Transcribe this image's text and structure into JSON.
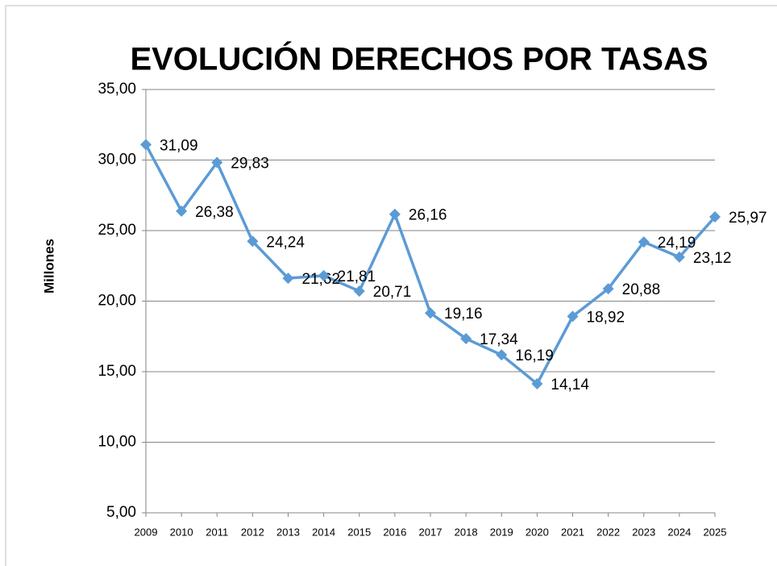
{
  "chart_data": {
    "type": "line",
    "title": "EVOLUCIÓN DERECHOS POR TASAS",
    "y_label": "Millones",
    "categories": [
      "2009",
      "2010",
      "2011",
      "2012",
      "2013",
      "2014",
      "2015",
      "2016",
      "2017",
      "2018",
      "2019",
      "2020",
      "2021",
      "2022",
      "2023",
      "2024",
      "2025"
    ],
    "values": [
      31.09,
      26.38,
      29.83,
      24.24,
      21.62,
      21.81,
      20.71,
      26.16,
      19.16,
      17.34,
      16.19,
      14.14,
      18.92,
      20.88,
      24.19,
      23.12,
      25.97
    ],
    "value_labels": [
      "31,09",
      "26,38",
      "29,83",
      "24,24",
      "21,62",
      "21,81",
      "20,71",
      "26,16",
      "19,16",
      "17,34",
      "16,19",
      "14,14",
      "18,92",
      "20,88",
      "24,19",
      "23,12",
      "25,97"
    ],
    "color": "#5b9bd5",
    "ylim": [
      5,
      35
    ],
    "yticks": [
      {
        "value": 5,
        "label": "5,00"
      },
      {
        "value": 10,
        "label": "10,00"
      },
      {
        "value": 15,
        "label": "15,00"
      },
      {
        "value": 20,
        "label": "20,00"
      },
      {
        "value": 25,
        "label": "25,00"
      },
      {
        "value": 30,
        "label": "30,00"
      },
      {
        "value": 35,
        "label": "35,00"
      }
    ],
    "grid": true
  }
}
